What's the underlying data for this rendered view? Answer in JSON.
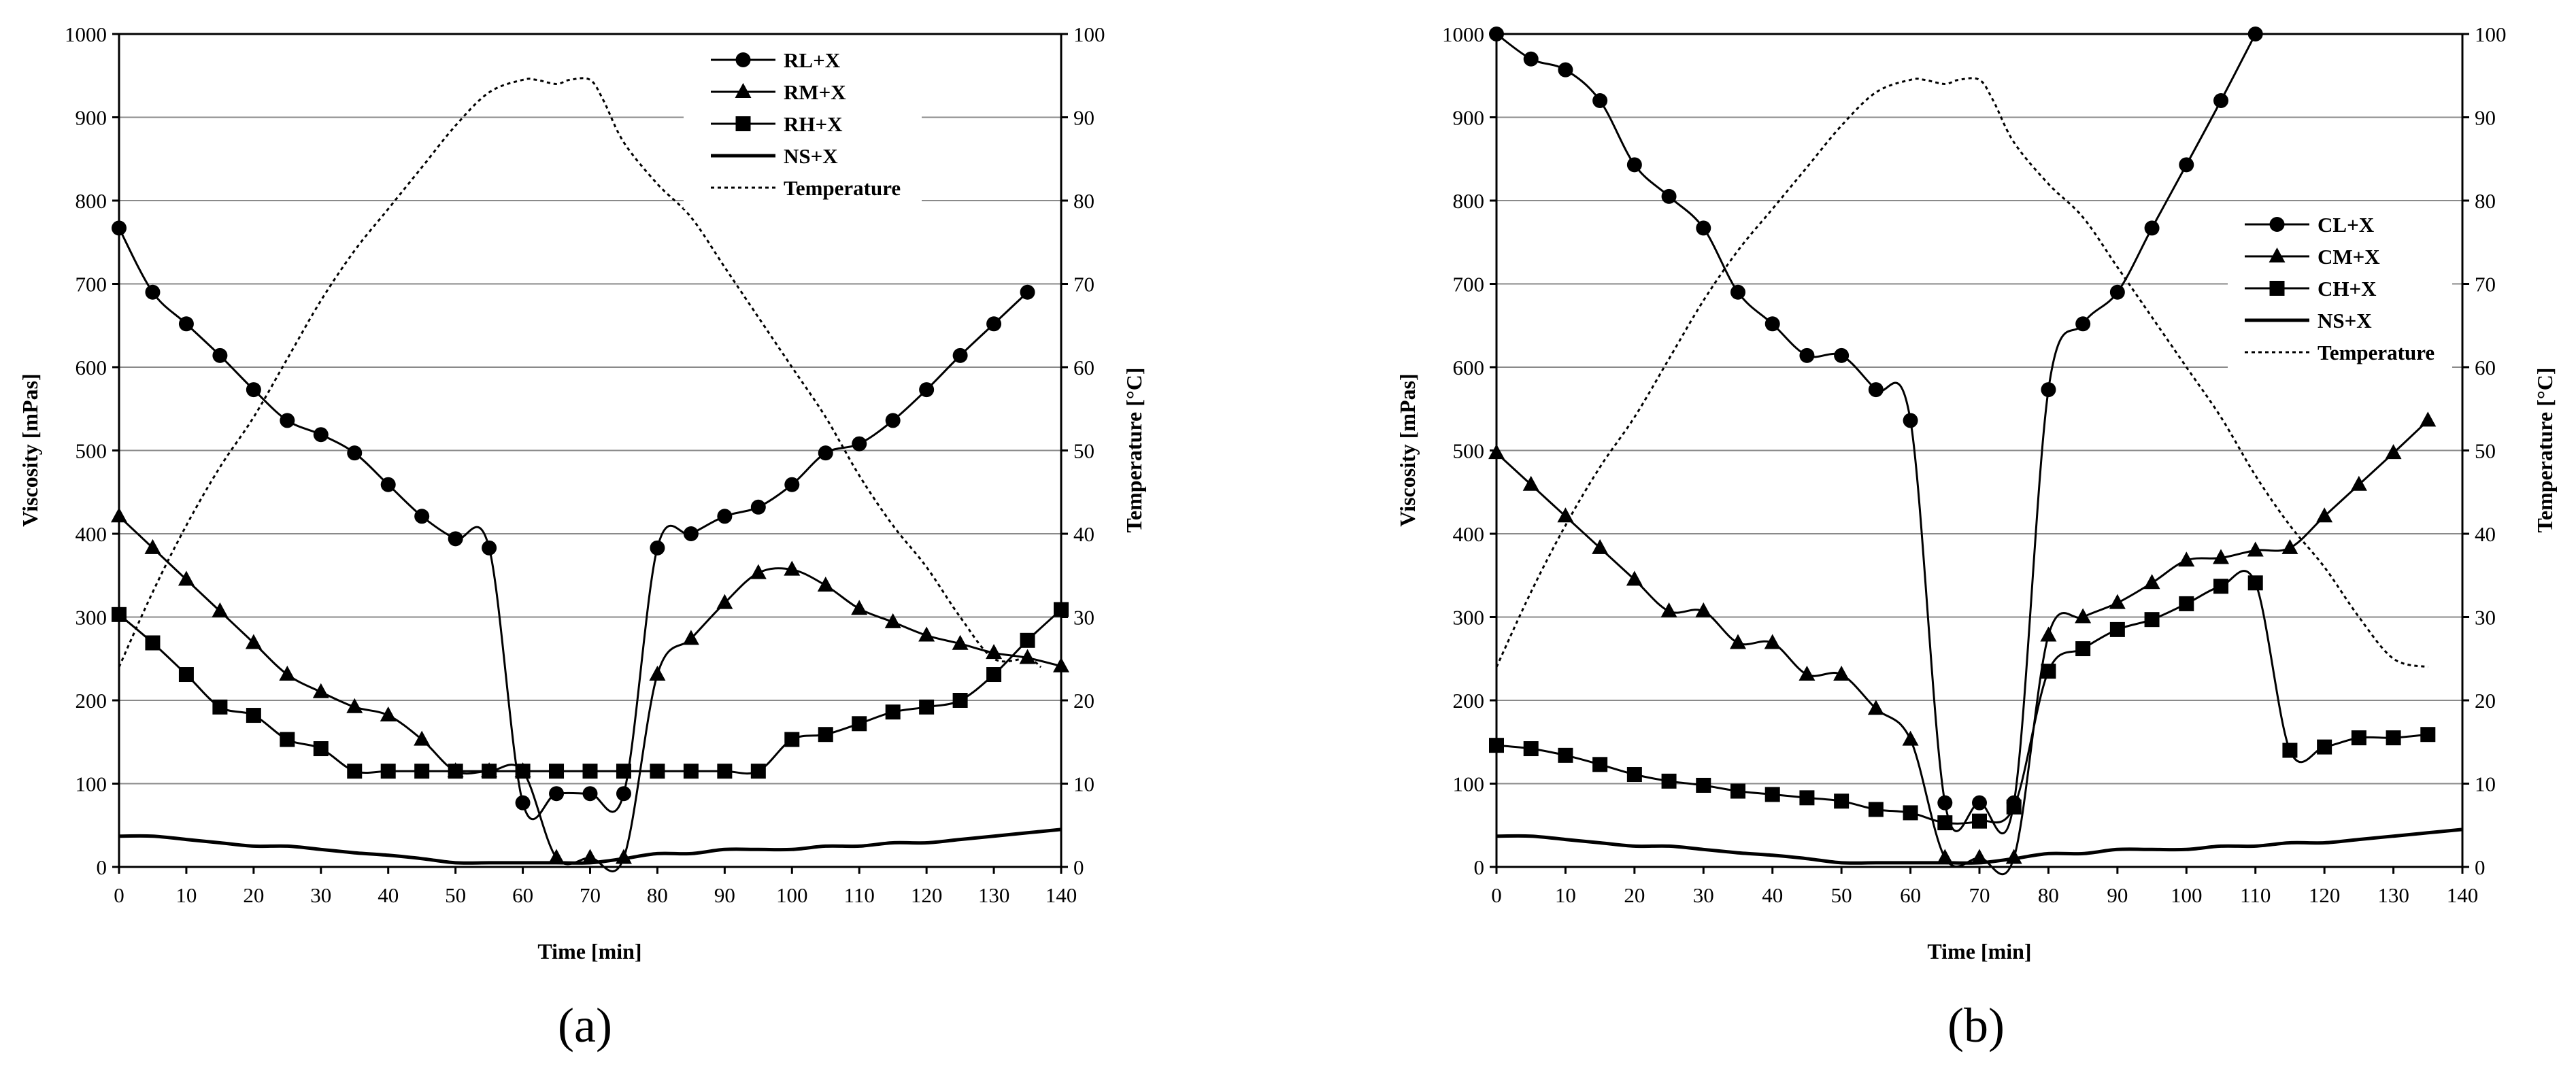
{
  "chart_data": [
    {
      "id": "a",
      "type": "line",
      "panel_label": "(a)",
      "xlabel": "Time [min]",
      "ylabel": "Viscosity  [mPas]",
      "y2label": "Temperature [°C]",
      "xlim": [
        0,
        140
      ],
      "ylim": [
        0,
        1000
      ],
      "y2lim": [
        0,
        100
      ],
      "xticks": [
        0,
        10,
        20,
        30,
        40,
        50,
        60,
        70,
        80,
        90,
        100,
        110,
        120,
        130,
        140
      ],
      "yticks": [
        0,
        100,
        200,
        300,
        400,
        500,
        600,
        700,
        800,
        900,
        1000
      ],
      "y2ticks": [
        0,
        10,
        20,
        30,
        40,
        50,
        60,
        70,
        80,
        90,
        100
      ],
      "grid": "horizontal",
      "legend_position": "top-center",
      "series": [
        {
          "name": "RL+X",
          "marker": "circle",
          "axis": "left",
          "x": [
            0,
            5,
            10,
            15,
            20,
            25,
            30,
            35,
            40,
            45,
            50,
            55,
            60,
            65,
            70,
            75,
            80,
            85,
            90,
            95,
            100,
            105,
            110,
            115,
            120,
            125,
            130,
            135
          ],
          "y": [
            767,
            690,
            652,
            614,
            573,
            536,
            519,
            497,
            459,
            421,
            394,
            383,
            77,
            88,
            88,
            88,
            383,
            400,
            421,
            432,
            459,
            497,
            508,
            536,
            573,
            614,
            652,
            690
          ]
        },
        {
          "name": "RM+X",
          "marker": "triangle",
          "axis": "left",
          "x": [
            0,
            5,
            10,
            15,
            20,
            25,
            30,
            35,
            40,
            45,
            50,
            55,
            60,
            65,
            70,
            75,
            80,
            85,
            90,
            95,
            100,
            105,
            110,
            115,
            120,
            125,
            130,
            135,
            140
          ],
          "y": [
            421,
            383,
            345,
            307,
            269,
            231,
            210,
            192,
            182,
            153,
            115,
            115,
            115,
            11,
            11,
            11,
            231,
            274,
            317,
            353,
            357,
            338,
            310,
            294,
            278,
            268,
            257,
            251,
            241
          ]
        },
        {
          "name": "RH+X",
          "marker": "square",
          "axis": "left",
          "x": [
            0,
            5,
            10,
            15,
            20,
            25,
            30,
            35,
            40,
            45,
            50,
            55,
            60,
            65,
            70,
            75,
            80,
            85,
            90,
            95,
            100,
            105,
            110,
            115,
            120,
            125,
            130,
            135,
            140
          ],
          "y": [
            303,
            269,
            231,
            192,
            182,
            153,
            142,
            115,
            115,
            115,
            115,
            115,
            115,
            115,
            115,
            115,
            115,
            115,
            115,
            115,
            153,
            159,
            172,
            186,
            192,
            200,
            231,
            272,
            309
          ]
        },
        {
          "name": "NS+X",
          "marker": "none",
          "axis": "left",
          "x": [
            0,
            5,
            10,
            15,
            20,
            25,
            30,
            35,
            40,
            45,
            50,
            55,
            60,
            65,
            70,
            75,
            80,
            85,
            90,
            95,
            100,
            105,
            110,
            115,
            120,
            125,
            130,
            135,
            140
          ],
          "y": [
            37,
            37,
            33,
            29,
            25,
            25,
            21,
            17,
            14,
            10,
            5,
            5,
            5,
            5,
            5,
            10,
            16,
            16,
            21,
            21,
            21,
            25,
            25,
            29,
            29,
            33,
            37,
            41,
            45
          ]
        },
        {
          "name": "Temperature",
          "marker": "none",
          "dash": "dotted",
          "axis": "right",
          "x": [
            0,
            5,
            10,
            15,
            20,
            25,
            30,
            35,
            40,
            45,
            50,
            55,
            60,
            62,
            65,
            67,
            70,
            72,
            75,
            80,
            85,
            90,
            95,
            100,
            105,
            110,
            115,
            120,
            125,
            130,
            135,
            137
          ],
          "y": [
            24,
            33,
            41,
            48,
            54,
            61,
            68,
            74,
            79,
            84,
            89,
            93,
            94.5,
            94.5,
            94,
            94.5,
            94.5,
            92,
            87,
            82,
            78,
            72,
            66,
            60,
            54,
            47,
            41,
            36,
            30,
            25,
            25,
            24
          ]
        }
      ]
    },
    {
      "id": "b",
      "type": "line",
      "panel_label": "(b)",
      "xlabel": "Time [min]",
      "ylabel": "Viscosity  [mPas]",
      "y2label": "Temperature [°C]",
      "xlim": [
        0,
        140
      ],
      "ylim": [
        0,
        1000
      ],
      "y2lim": [
        0,
        100
      ],
      "xticks": [
        0,
        10,
        20,
        30,
        40,
        50,
        60,
        70,
        80,
        90,
        100,
        110,
        120,
        130,
        140
      ],
      "yticks": [
        0,
        100,
        200,
        300,
        400,
        500,
        600,
        700,
        800,
        900,
        1000
      ],
      "y2ticks": [
        0,
        10,
        20,
        30,
        40,
        50,
        60,
        70,
        80,
        90,
        100
      ],
      "grid": "horizontal",
      "legend_position": "right",
      "series": [
        {
          "name": "CL+X",
          "marker": "circle",
          "axis": "left",
          "x": [
            0,
            5,
            10,
            15,
            20,
            25,
            30,
            35,
            40,
            45,
            50,
            55,
            60,
            65,
            70,
            75,
            80,
            85,
            90,
            95,
            100,
            105,
            110
          ],
          "y": [
            1000,
            970,
            957,
            920,
            843,
            805,
            767,
            690,
            652,
            614,
            614,
            573,
            536,
            77,
            77,
            77,
            573,
            652,
            690,
            767,
            843,
            920,
            1000
          ]
        },
        {
          "name": "CM+X",
          "marker": "triangle",
          "axis": "left",
          "x": [
            0,
            5,
            10,
            15,
            20,
            25,
            30,
            35,
            40,
            45,
            50,
            55,
            60,
            65,
            70,
            75,
            80,
            85,
            90,
            95,
            100,
            105,
            110,
            115,
            120,
            125,
            130,
            135
          ],
          "y": [
            497,
            459,
            421,
            383,
            345,
            307,
            307,
            269,
            269,
            231,
            231,
            190,
            153,
            11,
            11,
            11,
            278,
            300,
            317,
            341,
            368,
            371,
            380,
            383,
            421,
            459,
            497,
            536
          ]
        },
        {
          "name": "CH+X",
          "marker": "square",
          "axis": "left",
          "x": [
            0,
            5,
            10,
            15,
            20,
            25,
            30,
            35,
            40,
            45,
            50,
            55,
            60,
            65,
            70,
            75,
            80,
            85,
            90,
            95,
            100,
            105,
            110,
            115,
            120,
            125,
            130,
            135
          ],
          "y": [
            146,
            142,
            134,
            123,
            111,
            103,
            98,
            91,
            87,
            83,
            79,
            69,
            65,
            53,
            55,
            72,
            235,
            262,
            285,
            297,
            316,
            337,
            341,
            140,
            144,
            155,
            155,
            159
          ]
        },
        {
          "name": "NS+X",
          "marker": "none",
          "axis": "left",
          "x": [
            0,
            5,
            10,
            15,
            20,
            25,
            30,
            35,
            40,
            45,
            50,
            55,
            60,
            65,
            70,
            75,
            80,
            85,
            90,
            95,
            100,
            105,
            110,
            115,
            120,
            125,
            130,
            135,
            140
          ],
          "y": [
            37,
            37,
            33,
            29,
            25,
            25,
            21,
            17,
            14,
            10,
            5,
            5,
            5,
            5,
            5,
            10,
            16,
            16,
            21,
            21,
            21,
            25,
            25,
            29,
            29,
            33,
            37,
            41,
            45
          ]
        },
        {
          "name": "Temperature",
          "marker": "none",
          "dash": "dotted",
          "axis": "right",
          "x": [
            0,
            5,
            10,
            15,
            20,
            25,
            30,
            35,
            40,
            45,
            50,
            55,
            60,
            62,
            65,
            67,
            70,
            72,
            75,
            80,
            85,
            90,
            95,
            100,
            105,
            110,
            115,
            120,
            125,
            130,
            135
          ],
          "y": [
            24,
            33,
            41,
            48,
            54,
            61,
            68,
            74,
            79,
            84,
            89,
            93,
            94.5,
            94.5,
            94,
            94.5,
            94.5,
            92,
            87,
            82,
            78,
            72,
            66,
            60,
            54,
            47,
            41,
            36,
            30,
            25,
            24
          ]
        }
      ]
    }
  ]
}
